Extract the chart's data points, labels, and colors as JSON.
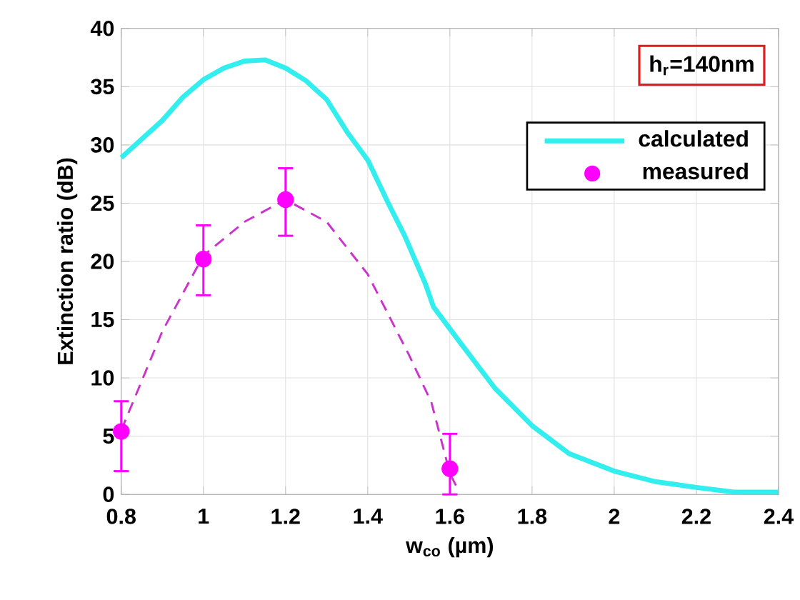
{
  "chart_data": {
    "type": "line",
    "xlabel": "w$_{co}$ (µm)",
    "ylabel": "Extinction ratio (dB)",
    "annotations": [
      "h$_{r}$=140nm"
    ],
    "xlim": [
      0.8,
      2.4
    ],
    "xticks": [
      0.8,
      1,
      1.2,
      1.4,
      1.6,
      1.8,
      2,
      2.2,
      2.4
    ],
    "ylim": [
      0,
      40
    ],
    "yticks": [
      0,
      5,
      10,
      15,
      20,
      25,
      30,
      35,
      40
    ],
    "grid": true,
    "legend": "top right",
    "series": [
      {
        "name": "calculated",
        "color": "#33eeee",
        "marker": "none",
        "line_style": "solid",
        "x": [
          0.8,
          0.9,
          0.95,
          1.0,
          1.05,
          1.1,
          1.15,
          1.2,
          1.25,
          1.3,
          1.35,
          1.4,
          1.45,
          1.49,
          1.54,
          1.56,
          1.63,
          1.71,
          1.8,
          1.89,
          2.0,
          2.1,
          2.2,
          2.29,
          2.4
        ],
        "values": [
          28.9,
          32.1,
          34.1,
          35.6,
          36.6,
          37.2,
          37.3,
          36.6,
          35.5,
          33.9,
          31.1,
          28.7,
          25.0,
          22.2,
          18.1,
          16.1,
          12.8,
          9.1,
          5.9,
          3.5,
          2.0,
          1.1,
          0.6,
          0.2,
          0.2
        ]
      },
      {
        "name": "measured",
        "type": "scatter",
        "color": "#ff00ff",
        "marker": "circle",
        "x": [
          0.8,
          1.0,
          1.2,
          1.6
        ],
        "values": [
          5.4,
          20.2,
          25.3,
          2.2
        ],
        "errors": [
          [
            2.0,
            8.0
          ],
          [
            17.1,
            23.1
          ],
          [
            22.2,
            28.0
          ],
          [
            0,
            5.2
          ]
        ]
      },
      {
        "color": "#cc33cc",
        "marker": "none",
        "line_style": "dashed",
        "x": [
          0.8,
          0.9,
          1.0,
          1.1,
          1.2,
          1.3,
          1.4,
          1.5,
          1.555,
          1.6,
          1.617
        ],
        "values": [
          5.5,
          14.0,
          20.5,
          23.4,
          25.3,
          23.4,
          18.9,
          12.0,
          7.9,
          1.8,
          0.6
        ]
      }
    ]
  }
}
